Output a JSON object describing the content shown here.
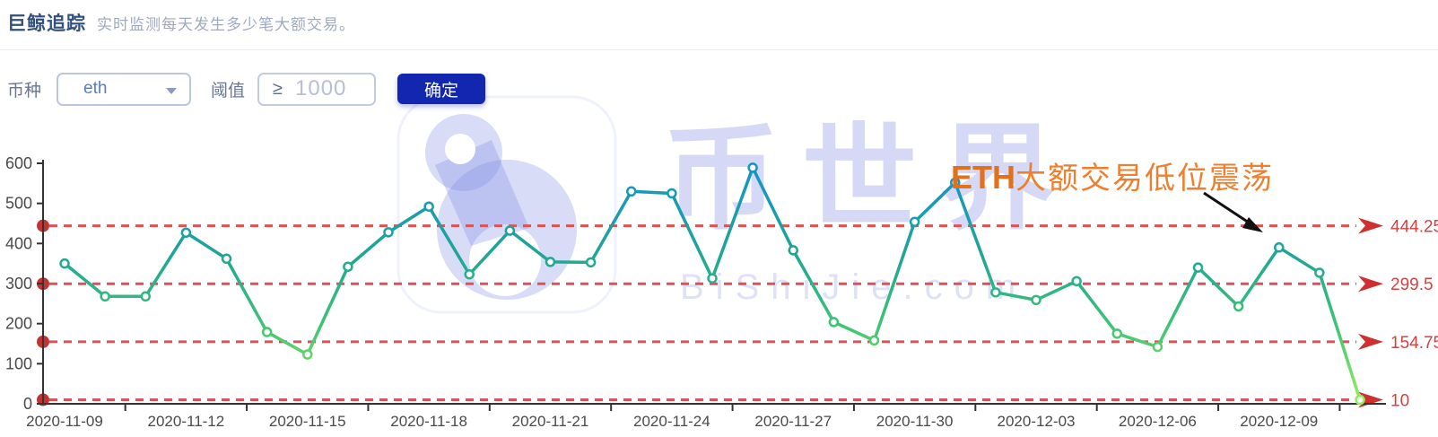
{
  "header": {
    "title": "巨鲸追踪",
    "subtitle": "实时监测每天发生多少笔大额交易。"
  },
  "controls": {
    "coin_label": "币种",
    "coin_value": "eth",
    "threshold_label": "阈值",
    "threshold_prefix": "≥",
    "threshold_value": "1000",
    "submit_label": "确定"
  },
  "watermark": {
    "brand": "币世界",
    "domain": "BiShiJie.com",
    "logo_icon": "b-logo"
  },
  "annotation": {
    "ticker": "ETH",
    "label": "大额交易低位震荡"
  },
  "chart_data": {
    "type": "line",
    "title": "",
    "xlabel": "",
    "ylabel": "",
    "x": [
      "2020-11-09",
      "2020-11-10",
      "2020-11-11",
      "2020-11-12",
      "2020-11-13",
      "2020-11-14",
      "2020-11-15",
      "2020-11-16",
      "2020-11-17",
      "2020-11-18",
      "2020-11-19",
      "2020-11-20",
      "2020-11-21",
      "2020-11-22",
      "2020-11-23",
      "2020-11-24",
      "2020-11-25",
      "2020-11-26",
      "2020-11-27",
      "2020-11-28",
      "2020-11-29",
      "2020-11-30",
      "2020-12-01",
      "2020-12-02",
      "2020-12-03",
      "2020-12-04",
      "2020-12-05",
      "2020-12-06",
      "2020-12-07",
      "2020-12-08",
      "2020-12-09",
      "2020-12-10",
      "2020-12-11"
    ],
    "values": [
      350,
      268,
      268,
      427,
      362,
      179,
      123,
      342,
      428,
      492,
      323,
      432,
      354,
      353,
      530,
      525,
      313,
      589,
      383,
      204,
      158,
      454,
      552,
      278,
      259,
      306,
      175,
      142,
      340,
      243,
      390,
      327,
      10
    ],
    "x_label_every": 3,
    "ylim": [
      0,
      600
    ],
    "y_tick_step": 100,
    "reference_lines": [
      444.25,
      299.5,
      154.75,
      10
    ],
    "grid": "off",
    "legend": "none",
    "colors": {
      "line_gradient_top": "#1593c8",
      "line_gradient_mid1": "#1ea695",
      "line_gradient_mid2": "#3fc473",
      "line_gradient_bottom": "#97ef5d",
      "marker_fill": "#ffffff",
      "reference_line": "#e25151",
      "reference_dot": "#c43331",
      "reference_arrow": "#cf2f2f",
      "reference_label": "#d84040",
      "axis": "#333333",
      "axis_label": "#4a4a4a",
      "annotation_arrow": "#111111"
    }
  }
}
